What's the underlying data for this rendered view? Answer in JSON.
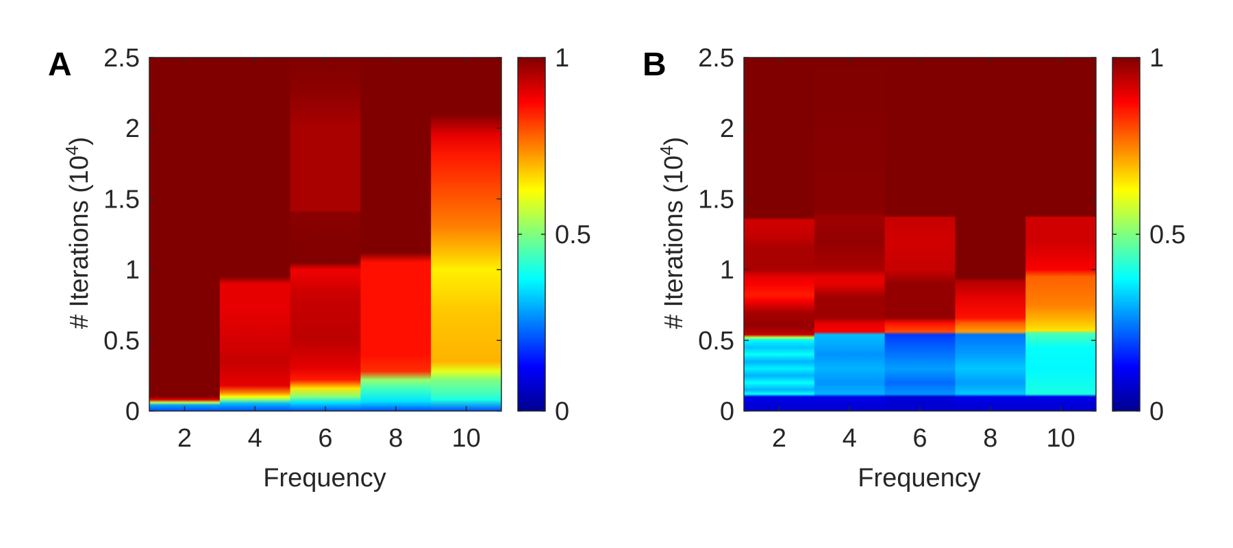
{
  "figure": {
    "panels": [
      {
        "letter": "A",
        "xlabel": "Frequency",
        "ylabel_main": "# Iterations (10",
        "ylabel_exp": "4",
        "ylabel_close": ")"
      },
      {
        "letter": "B",
        "xlabel": "Frequency",
        "ylabel_main": "# Iterations (10",
        "ylabel_exp": "4",
        "ylabel_close": ")"
      }
    ]
  },
  "colormap": {
    "name": "jet",
    "stops": [
      "#00008f",
      "#0000ff",
      "#00ffff",
      "#ffff00",
      "#ff0000",
      "#800000"
    ],
    "stop_positions": [
      0,
      0.125,
      0.375,
      0.625,
      0.875,
      1.0
    ]
  },
  "chart_data": [
    {
      "type": "heatmap",
      "panel": "A",
      "title": "",
      "xlabel": "Frequency",
      "ylabel": "# Iterations (10^4)",
      "x": [
        2,
        4,
        6,
        8,
        10
      ],
      "x_ticks": [
        "2",
        "4",
        "6",
        "8",
        "10"
      ],
      "xlim": [
        1,
        11
      ],
      "ylim": [
        0,
        2.5
      ],
      "y_ticks": [
        "0",
        "0.5",
        "1",
        "1.5",
        "2",
        "2.5"
      ],
      "y_tick_values": [
        0,
        0.5,
        1,
        1.5,
        2,
        2.5
      ],
      "colorbar": {
        "range": [
          0,
          1
        ],
        "ticks": [
          "0",
          "0.5",
          "1"
        ],
        "tick_values": [
          0,
          0.5,
          1
        ]
      },
      "columns": [
        {
          "frequency": 2,
          "profile": [
            [
              0,
              0.2
            ],
            [
              0.04,
              0.28
            ],
            [
              0.06,
              0.55
            ],
            [
              0.08,
              0.9
            ],
            [
              0.1,
              1.0
            ],
            [
              2.5,
              1.0
            ]
          ]
        },
        {
          "frequency": 4,
          "profile": [
            [
              0,
              0.2
            ],
            [
              0.05,
              0.3
            ],
            [
              0.08,
              0.5
            ],
            [
              0.1,
              0.62
            ],
            [
              0.13,
              0.75
            ],
            [
              0.18,
              0.9
            ],
            [
              0.35,
              0.93
            ],
            [
              0.7,
              0.9
            ],
            [
              0.9,
              0.9
            ],
            [
              0.95,
              1.0
            ],
            [
              2.5,
              1.0
            ]
          ]
        },
        {
          "frequency": 6,
          "profile": [
            [
              0,
              0.2
            ],
            [
              0.06,
              0.35
            ],
            [
              0.1,
              0.5
            ],
            [
              0.16,
              0.65
            ],
            [
              0.22,
              0.85
            ],
            [
              0.3,
              0.9
            ],
            [
              0.5,
              0.94
            ],
            [
              0.8,
              0.93
            ],
            [
              1.0,
              0.89
            ],
            [
              1.05,
              1.0
            ],
            [
              1.4,
              0.99
            ],
            [
              1.42,
              0.96
            ],
            [
              2.0,
              0.96
            ],
            [
              2.3,
              0.99
            ],
            [
              2.5,
              1.0
            ]
          ]
        },
        {
          "frequency": 8,
          "profile": [
            [
              0,
              0.2
            ],
            [
              0.07,
              0.35
            ],
            [
              0.15,
              0.43
            ],
            [
              0.22,
              0.52
            ],
            [
              0.28,
              0.83
            ],
            [
              0.4,
              0.86
            ],
            [
              0.8,
              0.86
            ],
            [
              1.05,
              0.86
            ],
            [
              1.12,
              1.0
            ],
            [
              2.5,
              1.0
            ]
          ]
        },
        {
          "frequency": 10,
          "profile": [
            [
              0,
              0.2
            ],
            [
              0.08,
              0.4
            ],
            [
              0.14,
              0.45
            ],
            [
              0.22,
              0.5
            ],
            [
              0.28,
              0.6
            ],
            [
              0.35,
              0.7
            ],
            [
              0.7,
              0.68
            ],
            [
              1.0,
              0.64
            ],
            [
              1.1,
              0.68
            ],
            [
              1.3,
              0.75
            ],
            [
              1.55,
              0.8
            ],
            [
              1.8,
              0.85
            ],
            [
              1.95,
              0.9
            ],
            [
              2.1,
              1.0
            ],
            [
              2.5,
              1.0
            ]
          ]
        }
      ]
    },
    {
      "type": "heatmap",
      "panel": "B",
      "title": "",
      "xlabel": "Frequency",
      "ylabel": "# Iterations (10^4)",
      "x": [
        2,
        4,
        6,
        8,
        10
      ],
      "x_ticks": [
        "2",
        "4",
        "6",
        "8",
        "10"
      ],
      "xlim": [
        1,
        11
      ],
      "ylim": [
        0,
        2.5
      ],
      "y_ticks": [
        "0",
        "0.5",
        "1",
        "1.5",
        "2",
        "2.5"
      ],
      "y_tick_values": [
        0,
        0.5,
        1,
        1.5,
        2,
        2.5
      ],
      "colorbar": {
        "range": [
          0,
          1
        ],
        "ticks": [
          "0",
          "0.5",
          "1"
        ],
        "tick_values": [
          0,
          0.5,
          1
        ]
      },
      "columns": [
        {
          "frequency": 2,
          "profile": [
            [
              0,
              0.07
            ],
            [
              0.1,
              0.1
            ],
            [
              0.12,
              0.38
            ],
            [
              0.15,
              0.3
            ],
            [
              0.2,
              0.38
            ],
            [
              0.25,
              0.3
            ],
            [
              0.3,
              0.36
            ],
            [
              0.35,
              0.3
            ],
            [
              0.4,
              0.38
            ],
            [
              0.45,
              0.32
            ],
            [
              0.5,
              0.37
            ],
            [
              0.52,
              0.55
            ],
            [
              0.54,
              0.93
            ],
            [
              0.6,
              0.98
            ],
            [
              0.7,
              0.96
            ],
            [
              0.78,
              0.88
            ],
            [
              0.82,
              0.85
            ],
            [
              0.9,
              0.88
            ],
            [
              0.95,
              0.9
            ],
            [
              1.0,
              0.96
            ],
            [
              1.15,
              0.96
            ],
            [
              1.25,
              0.93
            ],
            [
              1.35,
              0.92
            ],
            [
              1.37,
              1.0
            ],
            [
              2.5,
              1.0
            ]
          ]
        },
        {
          "frequency": 4,
          "profile": [
            [
              0,
              0.07
            ],
            [
              0.1,
              0.1
            ],
            [
              0.12,
              0.3
            ],
            [
              0.2,
              0.27
            ],
            [
              0.3,
              0.3
            ],
            [
              0.4,
              0.27
            ],
            [
              0.5,
              0.3
            ],
            [
              0.54,
              0.31
            ],
            [
              0.56,
              0.88
            ],
            [
              0.62,
              0.9
            ],
            [
              0.66,
              0.97
            ],
            [
              0.8,
              0.97
            ],
            [
              0.9,
              0.9
            ],
            [
              0.95,
              0.9
            ],
            [
              1.0,
              0.96
            ],
            [
              1.2,
              0.98
            ],
            [
              1.38,
              0.97
            ],
            [
              1.4,
              0.99
            ],
            [
              2.5,
              1.0
            ]
          ]
        },
        {
          "frequency": 6,
          "profile": [
            [
              0,
              0.07
            ],
            [
              0.1,
              0.08
            ],
            [
              0.12,
              0.27
            ],
            [
              0.2,
              0.23
            ],
            [
              0.3,
              0.28
            ],
            [
              0.4,
              0.24
            ],
            [
              0.5,
              0.2
            ],
            [
              0.54,
              0.18
            ],
            [
              0.56,
              0.8
            ],
            [
              0.62,
              0.86
            ],
            [
              0.66,
              0.98
            ],
            [
              0.9,
              0.98
            ],
            [
              1.0,
              0.93
            ],
            [
              1.2,
              0.92
            ],
            [
              1.37,
              0.93
            ],
            [
              1.38,
              1.0
            ],
            [
              2.5,
              1.0
            ]
          ]
        },
        {
          "frequency": 8,
          "profile": [
            [
              0,
              0.07
            ],
            [
              0.1,
              0.1
            ],
            [
              0.12,
              0.32
            ],
            [
              0.2,
              0.28
            ],
            [
              0.3,
              0.32
            ],
            [
              0.4,
              0.28
            ],
            [
              0.5,
              0.25
            ],
            [
              0.54,
              0.24
            ],
            [
              0.56,
              0.72
            ],
            [
              0.62,
              0.78
            ],
            [
              0.66,
              0.86
            ],
            [
              0.8,
              0.9
            ],
            [
              0.92,
              0.95
            ],
            [
              0.94,
              1.0
            ],
            [
              2.5,
              1.0
            ]
          ]
        },
        {
          "frequency": 10,
          "profile": [
            [
              0,
              0.07
            ],
            [
              0.1,
              0.1
            ],
            [
              0.12,
              0.4
            ],
            [
              0.3,
              0.37
            ],
            [
              0.45,
              0.38
            ],
            [
              0.55,
              0.45
            ],
            [
              0.57,
              0.65
            ],
            [
              0.65,
              0.7
            ],
            [
              0.75,
              0.75
            ],
            [
              0.95,
              0.78
            ],
            [
              1.0,
              0.88
            ],
            [
              1.2,
              0.92
            ],
            [
              1.37,
              0.92
            ],
            [
              1.38,
              1.0
            ],
            [
              2.5,
              1.0
            ]
          ]
        }
      ]
    }
  ]
}
